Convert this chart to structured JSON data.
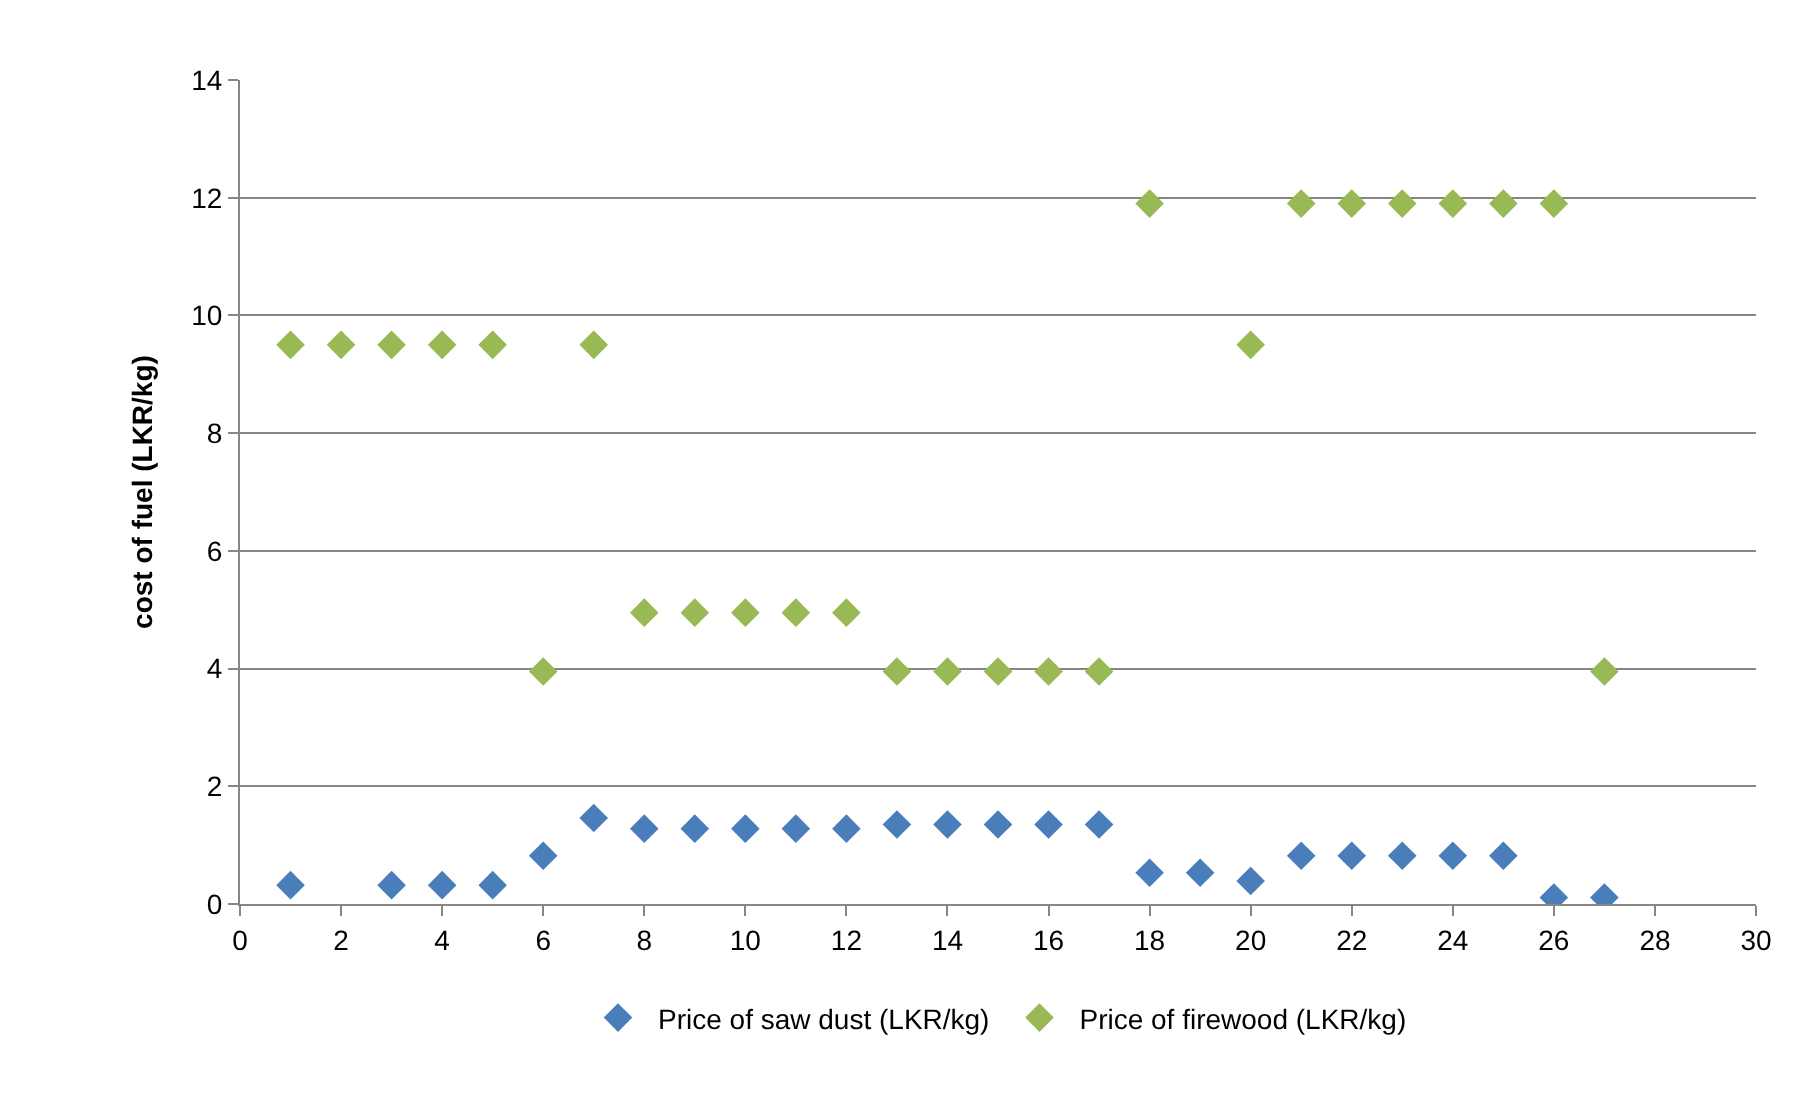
{
  "chart_data": {
    "type": "scatter",
    "ylabel": "cost of fuel (LKR/kg)",
    "series": [
      {
        "name": "Price of saw dust (LKR/kg)",
        "color": "#4a7ebb",
        "x": [
          1,
          3,
          4,
          5,
          6,
          7,
          8,
          9,
          10,
          11,
          12,
          13,
          14,
          15,
          16,
          17,
          18,
          19,
          20,
          21,
          22,
          23,
          24,
          25,
          26,
          27
        ],
        "values": [
          0.32,
          0.32,
          0.32,
          0.32,
          0.82,
          1.46,
          1.28,
          1.28,
          1.28,
          1.28,
          1.28,
          1.35,
          1.35,
          1.35,
          1.35,
          1.35,
          0.53,
          0.53,
          0.39,
          0.82,
          0.82,
          0.82,
          0.82,
          0.82,
          0.11,
          0.11
        ]
      },
      {
        "name": "Price of firewood (LKR/kg)",
        "color": "#98b954",
        "x": [
          1,
          2,
          3,
          4,
          5,
          6,
          7,
          8,
          9,
          10,
          11,
          12,
          13,
          14,
          15,
          16,
          17,
          18,
          20,
          21,
          22,
          23,
          24,
          25,
          26,
          27
        ],
        "values": [
          9.5,
          9.5,
          9.5,
          9.5,
          9.5,
          3.95,
          9.5,
          4.95,
          4.95,
          4.95,
          4.95,
          4.95,
          3.95,
          3.95,
          3.95,
          3.95,
          3.95,
          11.9,
          9.5,
          11.9,
          11.9,
          11.9,
          11.9,
          11.9,
          11.9,
          3.95
        ]
      }
    ],
    "xlim": [
      0,
      30
    ],
    "xticks": [
      0,
      2,
      4,
      6,
      8,
      10,
      12,
      14,
      16,
      18,
      20,
      22,
      24,
      26,
      28,
      30
    ],
    "ylim": [
      0,
      14
    ],
    "yticks": [
      0,
      2,
      4,
      6,
      8,
      10,
      12,
      14
    ],
    "grid": "y",
    "legend": "bottom",
    "marker": "diamond"
  }
}
